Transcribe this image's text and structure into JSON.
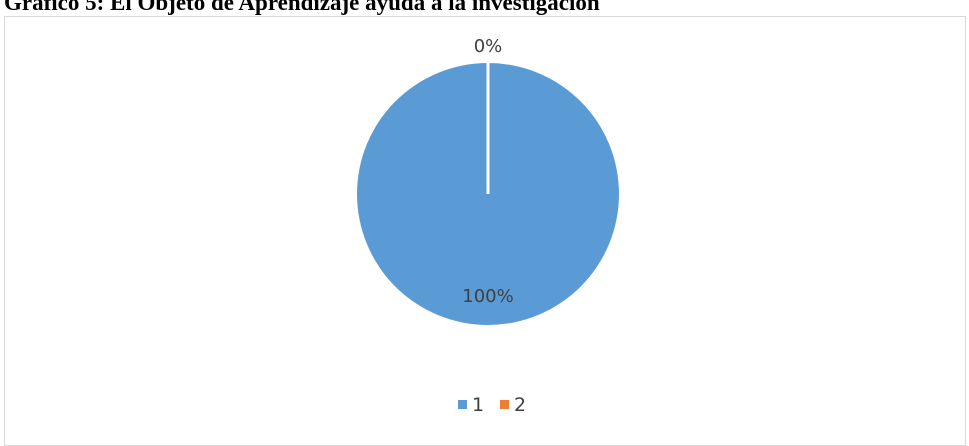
{
  "document": {
    "title": "Gráfico 5: El Objeto de Aprendizaje ayuda a la investigación"
  },
  "chart_data": {
    "type": "pie",
    "categories": [
      "1",
      "2"
    ],
    "values": [
      100,
      0
    ],
    "data_labels": [
      "100%",
      "0%"
    ],
    "colors": [
      "#5b9bd5",
      "#ed7d31"
    ],
    "legend": {
      "position": "bottom",
      "entries": [
        "1",
        "2"
      ]
    }
  }
}
